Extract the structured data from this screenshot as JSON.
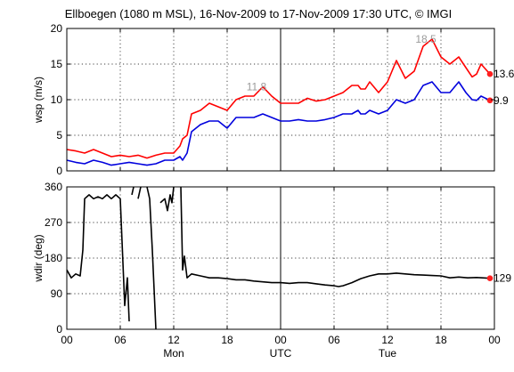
{
  "title": "Ellboegen (1080 m MSL), 16-Nov-2009 to 17-Nov-2009 17:30 UTC, © IMGI",
  "colors": {
    "gust": "#ff0000",
    "mean": "#0000dd",
    "dir": "#000000",
    "marker": "#ff2020"
  },
  "chart_data": [
    {
      "type": "line",
      "ylabel": "wsp (m/s)",
      "ylim": [
        0,
        20
      ],
      "yticks": [
        "0",
        "5",
        "10",
        "15",
        "20"
      ],
      "xlim": [
        0,
        48
      ],
      "grid": true,
      "series": [
        {
          "color": "#ff0000",
          "x": [
            0,
            1,
            2,
            3,
            4,
            5,
            6,
            7,
            8,
            9,
            10,
            11,
            12,
            12.7,
            13,
            13.5,
            14,
            15,
            16,
            17,
            18,
            19,
            20,
            21,
            22,
            23,
            24,
            25,
            26,
            27,
            28,
            29,
            30,
            31,
            32,
            32.7,
            33,
            33.5,
            34,
            35,
            36,
            37,
            38,
            39,
            40,
            41,
            42,
            43,
            44,
            44.8,
            45.5,
            46,
            46.5,
            47.5
          ],
          "y": [
            3.0,
            2.8,
            2.5,
            3.0,
            2.5,
            2.0,
            2.2,
            2.0,
            2.2,
            1.8,
            2.2,
            2.5,
            2.5,
            3.5,
            4.5,
            5.0,
            8.0,
            8.5,
            9.5,
            9.0,
            8.5,
            10.0,
            10.5,
            10.5,
            11.8,
            10.5,
            9.5,
            9.5,
            9.5,
            10.2,
            9.8,
            10.0,
            10.5,
            11.0,
            12.0,
            12.0,
            11.5,
            11.5,
            12.5,
            11.0,
            12.5,
            15.5,
            13.0,
            14.0,
            17.5,
            18.5,
            16.0,
            15.0,
            16.0,
            14.5,
            13.2,
            13.6,
            15.0,
            13.6
          ]
        },
        {
          "color": "#0000dd",
          "x": [
            0,
            1,
            2,
            3,
            4,
            5,
            6,
            7,
            8,
            9,
            10,
            11,
            12,
            12.7,
            13,
            13.5,
            14,
            15,
            16,
            17,
            18,
            19,
            20,
            21,
            22,
            23,
            24,
            25,
            26,
            27,
            28,
            29,
            30,
            31,
            32,
            32.7,
            33,
            33.5,
            34,
            35,
            36,
            37,
            38,
            39,
            40,
            41,
            42,
            43,
            44,
            44.8,
            45.5,
            46,
            46.5,
            47.5
          ],
          "y": [
            1.5,
            1.2,
            1.0,
            1.5,
            1.2,
            0.8,
            1.0,
            1.2,
            1.0,
            0.8,
            1.0,
            1.5,
            1.5,
            2.0,
            1.5,
            2.5,
            5.5,
            6.5,
            7.0,
            7.0,
            6.0,
            7.5,
            7.5,
            7.5,
            8.0,
            7.5,
            7.0,
            7.0,
            7.2,
            7.0,
            7.0,
            7.2,
            7.5,
            8.0,
            8.0,
            8.5,
            8.0,
            8.0,
            8.5,
            8.0,
            8.5,
            10.0,
            9.5,
            10.0,
            12.0,
            12.5,
            11.0,
            11.0,
            12.5,
            11.0,
            10.0,
            9.9,
            10.5,
            9.9
          ]
        }
      ],
      "markers": [
        {
          "x": 47.5,
          "y": 13.6,
          "color": "#ff2020"
        },
        {
          "x": 47.5,
          "y": 9.9,
          "color": "#ff2020"
        }
      ],
      "annotations": [
        {
          "text": "11.8",
          "x": 22,
          "y": 11.8,
          "color": "#9a9a9a"
        },
        {
          "text": "18.5",
          "x": 41,
          "y": 18.5,
          "color": "#9a9a9a"
        },
        {
          "text": "13.6",
          "x": 47.5,
          "y": 13.6,
          "color": "#000000"
        },
        {
          "text": "9.9",
          "x": 47.5,
          "y": 9.9,
          "color": "#000000"
        }
      ]
    },
    {
      "type": "line",
      "ylabel": "wdir (deg)",
      "ylim": [
        0,
        360
      ],
      "yticks": [
        "0",
        "90",
        "180",
        "270",
        "360"
      ],
      "xlim": [
        0,
        48
      ],
      "grid": true,
      "series": [
        {
          "color": "#000000",
          "x": [
            0,
            0.5,
            1,
            1.5,
            1.8,
            2,
            2.5,
            3,
            3.5,
            4,
            4.5,
            5,
            5.5,
            6,
            6.5,
            6.8,
            7,
            7.3,
            7.5,
            7.8,
            8,
            8.3,
            8.6,
            9,
            9.3,
            9.6,
            10,
            10.5,
            11,
            11.3,
            11.6,
            11.8,
            12,
            12.5,
            12.8,
            13,
            13.2,
            13.5,
            14,
            15,
            16,
            17,
            18,
            19,
            20,
            21,
            22,
            23,
            24,
            25,
            26,
            27,
            28,
            29,
            30,
            30.5,
            31,
            32,
            33,
            34,
            35,
            36,
            37,
            38,
            39,
            40,
            41,
            42,
            43,
            44,
            45,
            46,
            47.5
          ],
          "y": [
            150,
            130,
            140,
            135,
            200,
            330,
            340,
            330,
            335,
            330,
            340,
            330,
            340,
            330,
            60,
            130,
            20,
            340,
            360,
            0,
            330,
            360,
            0,
            360,
            330,
            200,
            0,
            320,
            330,
            300,
            340,
            320,
            360,
            0,
            360,
            150,
            185,
            130,
            140,
            135,
            130,
            130,
            128,
            125,
            125,
            122,
            120,
            118,
            118,
            116,
            118,
            118,
            115,
            112,
            110,
            108,
            110,
            118,
            128,
            135,
            140,
            140,
            142,
            140,
            138,
            137,
            136,
            135,
            130,
            132,
            130,
            131,
            129
          ]
        }
      ],
      "markers": [
        {
          "x": 47.5,
          "y": 129,
          "color": "#ff2020"
        }
      ],
      "annotations": [
        {
          "text": "129",
          "x": 47.5,
          "y": 129,
          "color": "#000000"
        }
      ]
    }
  ],
  "xaxis": {
    "ticks": [
      {
        "x": 0,
        "label": "00"
      },
      {
        "x": 6,
        "label": "06"
      },
      {
        "x": 12,
        "label": "12"
      },
      {
        "x": 18,
        "label": "18"
      },
      {
        "x": 24,
        "label": "00"
      },
      {
        "x": 30,
        "label": "06"
      },
      {
        "x": 36,
        "label": "12"
      },
      {
        "x": 42,
        "label": "18"
      },
      {
        "x": 48,
        "label": "00"
      }
    ],
    "day_labels": [
      {
        "x": 12,
        "label": "Mon"
      },
      {
        "x": 24,
        "label": "UTC"
      },
      {
        "x": 36,
        "label": "Tue"
      }
    ],
    "midnight_line_x": 24
  }
}
